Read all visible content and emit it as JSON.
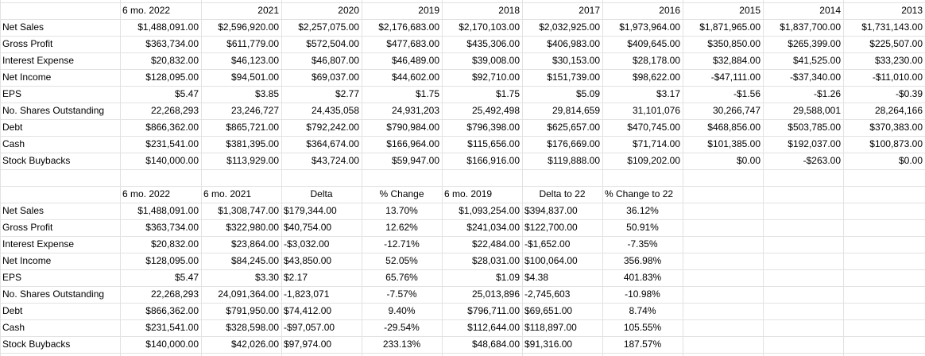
{
  "top_table": {
    "headers": [
      "6 mo. 2022",
      "2021",
      "2020",
      "2019",
      "2018",
      "2017",
      "2016",
      "2015",
      "2014",
      "2013"
    ],
    "rows": [
      {
        "label": "Net Sales",
        "values": [
          "$1,488,091.00",
          "$2,596,920.00",
          "$2,257,075.00",
          "$2,176,683.00",
          "$2,170,103.00",
          "$2,032,925.00",
          "$1,973,964.00",
          "$1,871,965.00",
          "$1,837,700.00",
          "$1,731,143.00"
        ]
      },
      {
        "label": "Gross Profit",
        "values": [
          "$363,734.00",
          "$611,779.00",
          "$572,504.00",
          "$477,683.00",
          "$435,306.00",
          "$406,983.00",
          "$409,645.00",
          "$350,850.00",
          "$265,399.00",
          "$225,507.00"
        ]
      },
      {
        "label": "Interest Expense",
        "values": [
          "$20,832.00",
          "$46,123.00",
          "$46,807.00",
          "$46,489.00",
          "$39,008.00",
          "$30,153.00",
          "$28,178.00",
          "$32,884.00",
          "$41,525.00",
          "$33,230.00"
        ]
      },
      {
        "label": "Net Income",
        "values": [
          "$128,095.00",
          "$94,501.00",
          "$69,037.00",
          "$44,602.00",
          "$92,710.00",
          "$151,739.00",
          "$98,622.00",
          "-$47,111.00",
          "-$37,340.00",
          "-$11,010.00"
        ]
      },
      {
        "label": "EPS",
        "values": [
          "$5.47",
          "$3.85",
          "$2.77",
          "$1.75",
          "$1.75",
          "$5.09",
          "$3.17",
          "-$1.56",
          "-$1.26",
          "-$0.39"
        ]
      },
      {
        "label": "No. Shares Outstanding",
        "values": [
          "22,268,293",
          "23,246,727",
          "24,435,058",
          "24,931,203",
          "25,492,498",
          "29,814,659",
          "31,101,076",
          "30,266,747",
          "29,588,001",
          "28,264,166"
        ]
      },
      {
        "label": "Debt",
        "values": [
          "$866,362.00",
          "$865,721.00",
          "$792,242.00",
          "$790,984.00",
          "$796,398.00",
          "$625,657.00",
          "$470,745.00",
          "$468,856.00",
          "$503,785.00",
          "$370,383.00"
        ]
      },
      {
        "label": "Cash",
        "values": [
          "$231,541.00",
          "$381,395.00",
          "$364,674.00",
          "$166,964.00",
          "$115,656.00",
          "$176,669.00",
          "$71,714.00",
          "$101,385.00",
          "$192,037.00",
          "$100,873.00"
        ]
      },
      {
        "label": "Stock Buybacks",
        "values": [
          "$140,000.00",
          "$113,929.00",
          "$43,724.00",
          "$59,947.00",
          "$166,916.00",
          "$119,888.00",
          "$109,202.00",
          "$0.00",
          "-$263.00",
          "$0.00"
        ]
      }
    ]
  },
  "bottom_table": {
    "headers": [
      "6 mo. 2022",
      "6 mo. 2021",
      "Delta",
      "% Change",
      "6 mo. 2019",
      "Delta to 22",
      "% Change to 22"
    ],
    "rows": [
      {
        "label": "Net Sales",
        "values": [
          "$1,488,091.00",
          "$1,308,747.00",
          "$179,344.00",
          "13.70%",
          "$1,093,254.00",
          "$394,837.00",
          "36.12%"
        ]
      },
      {
        "label": "Gross Profit",
        "values": [
          "$363,734.00",
          "$322,980.00",
          "$40,754.00",
          "12.62%",
          "$241,034.00",
          "$122,700.00",
          "50.91%"
        ]
      },
      {
        "label": "Interest Expense",
        "values": [
          "$20,832.00",
          "$23,864.00",
          "-$3,032.00",
          "-12.71%",
          "$22,484.00",
          "-$1,652.00",
          "-7.35%"
        ]
      },
      {
        "label": "Net Income",
        "values": [
          "$128,095.00",
          "$84,245.00",
          "$43,850.00",
          "52.05%",
          "$28,031.00",
          "$100,064.00",
          "356.98%"
        ]
      },
      {
        "label": "EPS",
        "values": [
          "$5.47",
          "$3.30",
          "$2.17",
          "65.76%",
          "$1.09",
          "$4.38",
          "401.83%"
        ]
      },
      {
        "label": "No. Shares Outstanding",
        "values": [
          "22,268,293",
          "24,091,364.00",
          "-1,823,071",
          "-7.57%",
          "25,013,896",
          "-2,745,603",
          "-10.98%"
        ]
      },
      {
        "label": "Debt",
        "values": [
          "$866,362.00",
          "$791,950.00",
          "$74,412.00",
          "9.40%",
          "$796,711.00",
          "$69,651.00",
          "8.74%"
        ]
      },
      {
        "label": "Cash",
        "values": [
          "$231,541.00",
          "$328,598.00",
          "-$97,057.00",
          "-29.54%",
          "$112,644.00",
          "$118,897.00",
          "105.55%"
        ]
      },
      {
        "label": "Stock Buybacks",
        "values": [
          "$140,000.00",
          "$42,026.00",
          "$97,974.00",
          "233.13%",
          "$48,684.00",
          "$91,316.00",
          "187.57%"
        ]
      }
    ]
  }
}
